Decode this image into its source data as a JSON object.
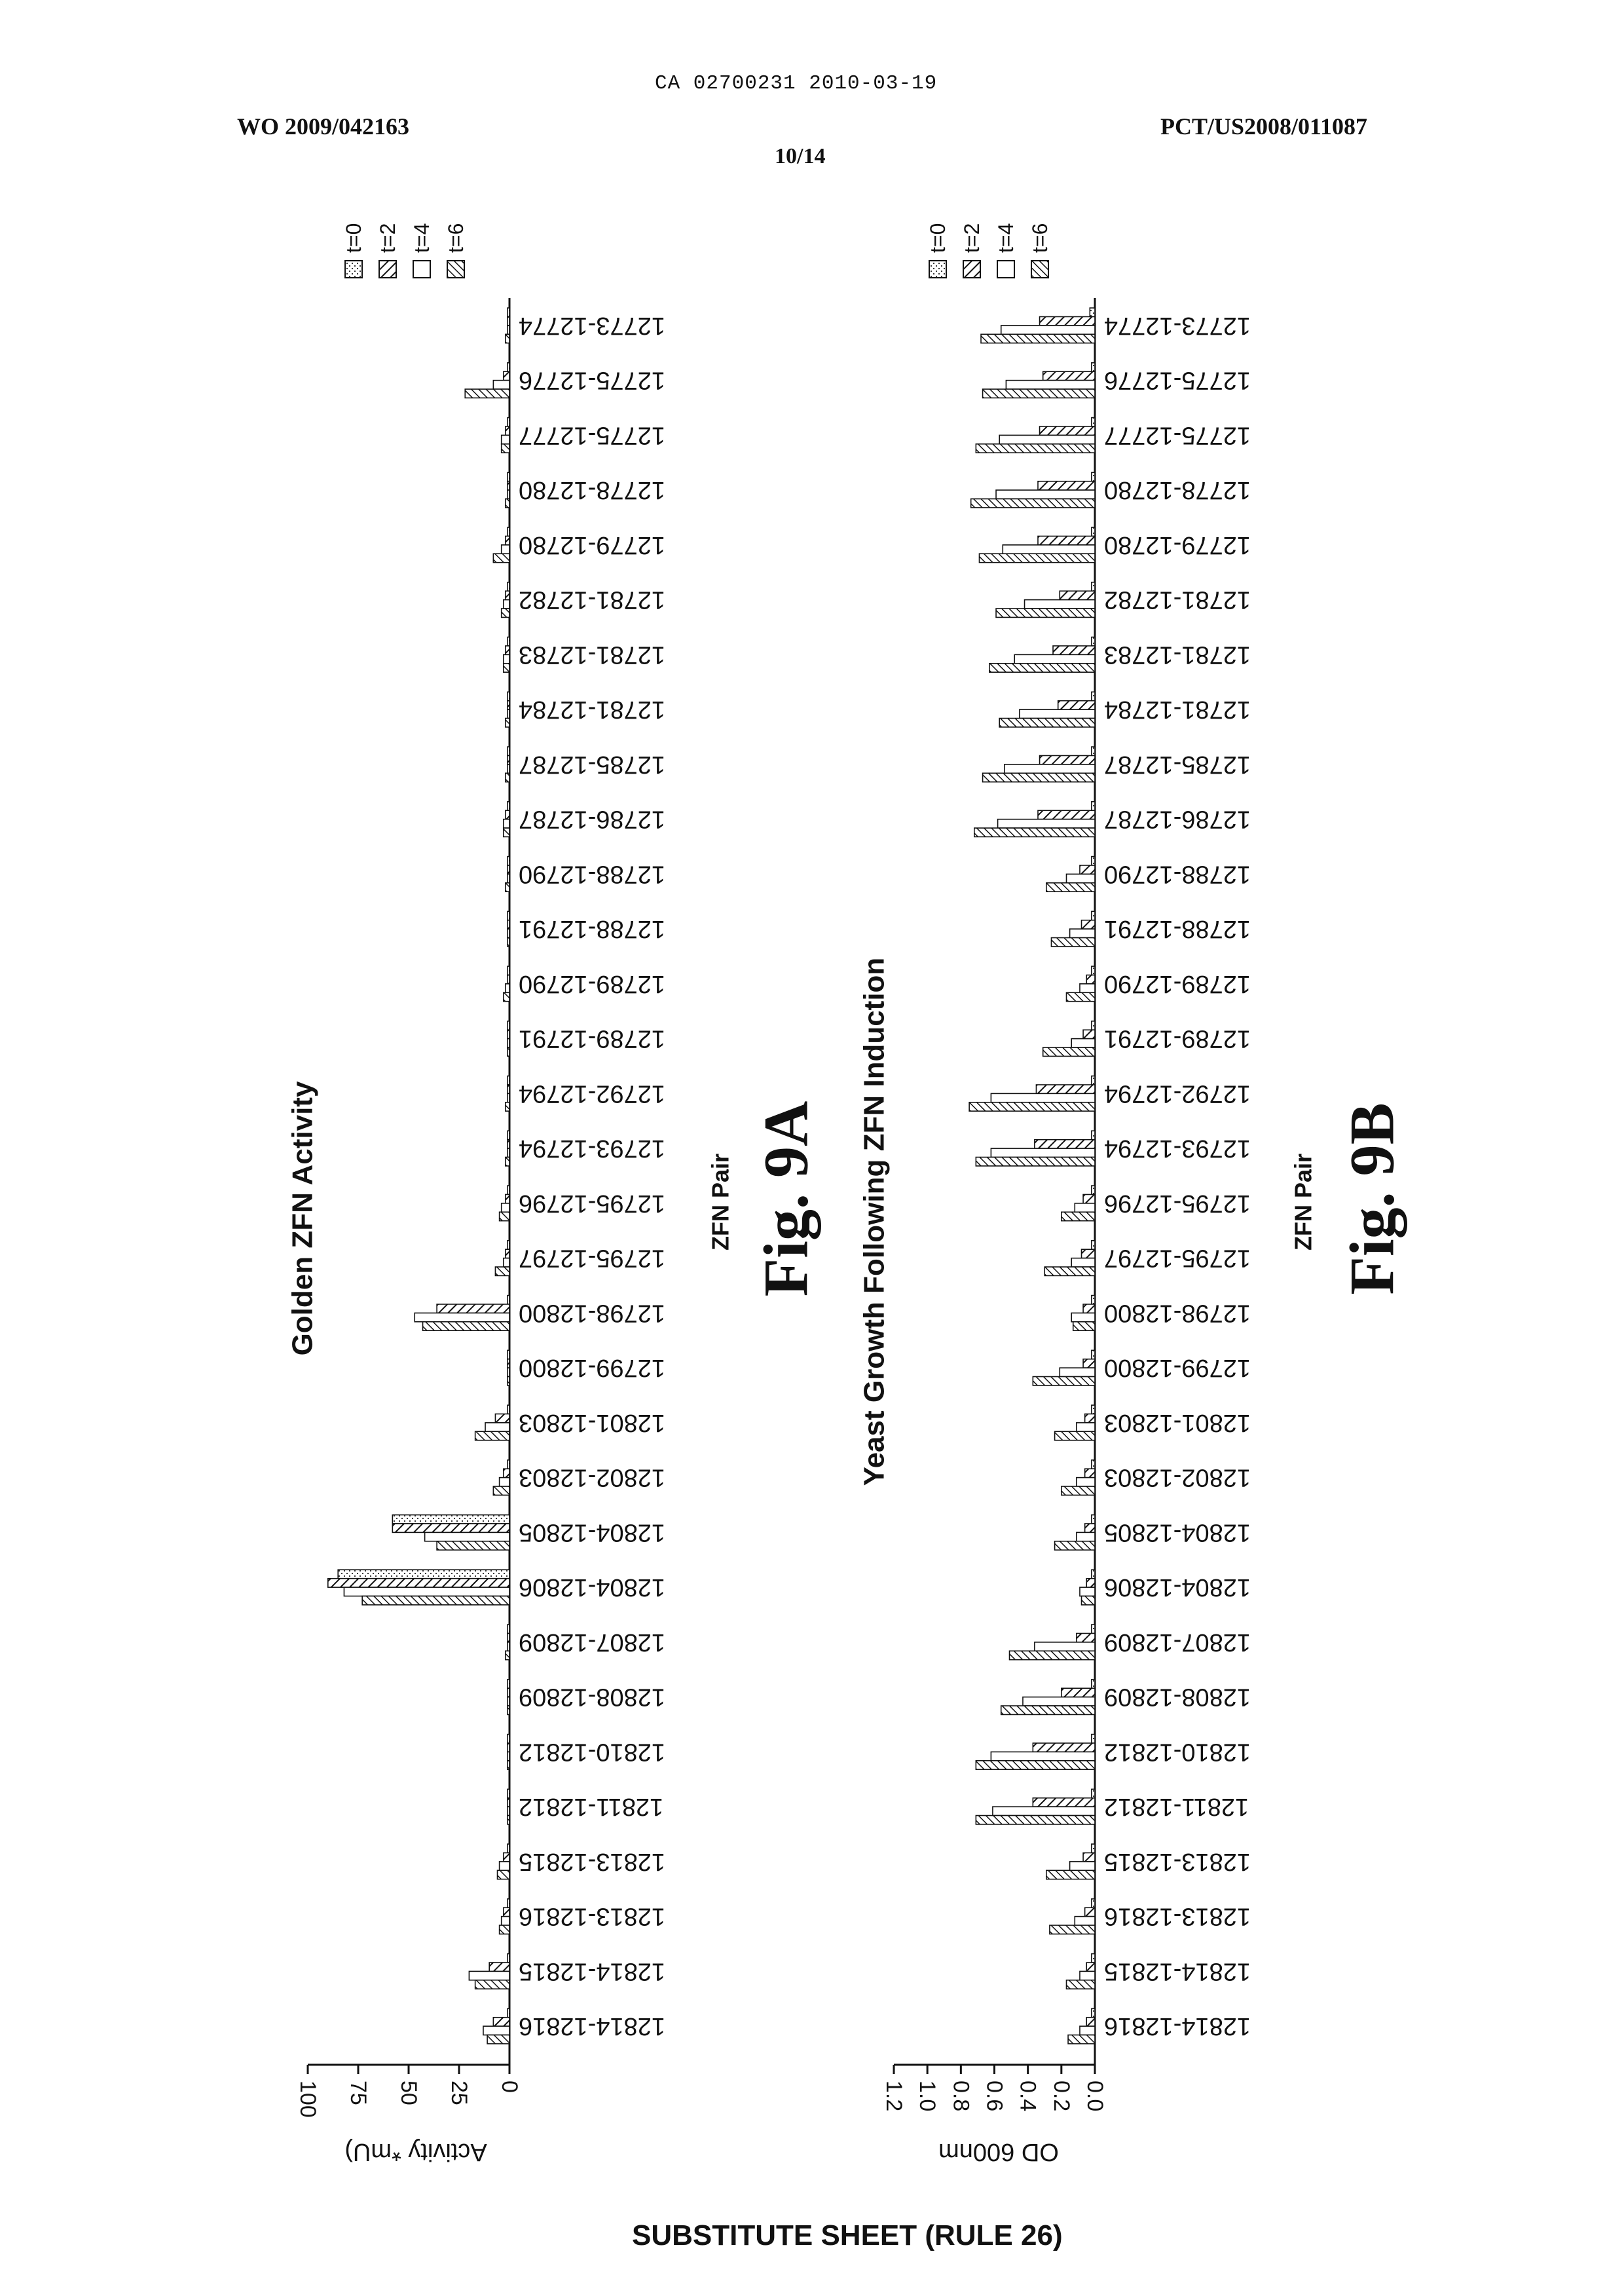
{
  "header": {
    "ca_number": "CA 02700231 2010-03-19",
    "wo_number": "WO 2009/042163",
    "pct_number": "PCT/US2008/011087",
    "page": "10/14"
  },
  "footer": "SUBSTITUTE SHEET (RULE 26)",
  "colors": {
    "ink": "#111111",
    "paper": "#ffffff"
  },
  "chart_data": [
    {
      "type": "bar",
      "title": "Golden ZFN Activity",
      "xlabel": "ZFN Pair",
      "ylabel": "Activity *mU)",
      "figure_label": "Fig. 9A",
      "ylim": [
        0,
        100
      ],
      "yticks": [
        "0",
        "25",
        "50",
        "75",
        "100"
      ],
      "legend": [
        "t=0",
        "t=2",
        "t=4",
        "t=6"
      ],
      "legend_position": "top",
      "grid": false,
      "orientation": "rotated page (bars grow to the left)",
      "categories": [
        "12773-12774",
        "12775-12776",
        "12775-12777",
        "12778-12780",
        "12779-12780",
        "12781-12782",
        "12781-12783",
        "12781-12784",
        "12785-12787",
        "12786-12787",
        "12788-12790",
        "12788-12791",
        "12789-12790",
        "12789-12791",
        "12792-12794",
        "12793-12794",
        "12795-12796",
        "12795-12797",
        "12798-12800",
        "12799-12800",
        "12801-12803",
        "12802-12803",
        "12804-12805",
        "12804-12806",
        "12807-12809",
        "12808-12809",
        "12810-12812",
        "12811-12812",
        "12813-12815",
        "12813-12816",
        "12814-12815",
        "12814-12816"
      ],
      "series": [
        {
          "name": "t=0",
          "values": [
            1,
            1,
            1,
            1,
            1,
            1,
            1,
            1,
            1,
            1,
            1,
            1,
            1,
            1,
            1,
            1,
            1,
            1,
            1,
            1,
            1,
            1,
            58,
            85,
            1,
            1,
            1,
            1,
            1,
            1,
            1,
            1
          ]
        },
        {
          "name": "t=2",
          "values": [
            1,
            3,
            2,
            1,
            2,
            2,
            2,
            1,
            1,
            2,
            1,
            1,
            1,
            1,
            1,
            1,
            2,
            2,
            36,
            1,
            7,
            3,
            58,
            90,
            1,
            1,
            1,
            1,
            3,
            3,
            10,
            8
          ]
        },
        {
          "name": "t=4",
          "values": [
            1,
            8,
            4,
            1,
            4,
            3,
            3,
            1,
            1,
            3,
            1,
            1,
            2,
            1,
            1,
            1,
            4,
            3,
            47,
            1,
            12,
            5,
            42,
            82,
            1,
            1,
            1,
            1,
            5,
            4,
            20,
            13
          ]
        },
        {
          "name": "t=6",
          "values": [
            2,
            22,
            4,
            2,
            8,
            4,
            3,
            2,
            2,
            3,
            2,
            1,
            3,
            1,
            2,
            2,
            5,
            7,
            43,
            1,
            17,
            8,
            36,
            73,
            2,
            1,
            1,
            1,
            6,
            5,
            17,
            11
          ]
        }
      ]
    },
    {
      "type": "bar",
      "title": "Yeast Growth Following ZFN Induction",
      "xlabel": "ZFN Pair",
      "ylabel": "OD 600nm",
      "figure_label": "Fig. 9B",
      "ylim": [
        0,
        1.2
      ],
      "yticks": [
        "0.0",
        "0.2",
        "0.4",
        "0.6",
        "0.8",
        "1.0",
        "1.2"
      ],
      "legend": [
        "t=0",
        "t=2",
        "t=4",
        "t=6"
      ],
      "legend_position": "top",
      "grid": false,
      "orientation": "rotated page (bars grow to the left)",
      "categories": [
        "12773-12774",
        "12775-12776",
        "12775-12777",
        "12778-12780",
        "12779-12780",
        "12781-12782",
        "12781-12783",
        "12781-12784",
        "12785-12787",
        "12786-12787",
        "12788-12790",
        "12788-12791",
        "12789-12790",
        "12789-12791",
        "12792-12794",
        "12793-12794",
        "12795-12796",
        "12795-12797",
        "12798-12800",
        "12799-12800",
        "12801-12803",
        "12802-12803",
        "12804-12805",
        "12804-12806",
        "12807-12809",
        "12808-12809",
        "12810-12812",
        "12811-12812",
        "12813-12815",
        "12813-12816",
        "12814-12815",
        "12814-12816"
      ],
      "series": [
        {
          "name": "t=0",
          "values": [
            0.03,
            0.02,
            0.02,
            0.02,
            0.02,
            0.02,
            0.02,
            0.02,
            0.02,
            0.02,
            0.02,
            0.02,
            0.02,
            0.02,
            0.02,
            0.02,
            0.02,
            0.02,
            0.02,
            0.02,
            0.02,
            0.02,
            0.02,
            0.02,
            0.02,
            0.02,
            0.02,
            0.02,
            0.02,
            0.02,
            0.02,
            0.02
          ]
        },
        {
          "name": "t=2",
          "values": [
            0.33,
            0.31,
            0.33,
            0.34,
            0.34,
            0.21,
            0.25,
            0.22,
            0.33,
            0.34,
            0.09,
            0.08,
            0.05,
            0.07,
            0.35,
            0.36,
            0.07,
            0.08,
            0.07,
            0.07,
            0.06,
            0.06,
            0.06,
            0.05,
            0.11,
            0.2,
            0.37,
            0.37,
            0.07,
            0.06,
            0.05,
            0.05
          ]
        },
        {
          "name": "t=4",
          "values": [
            0.56,
            0.53,
            0.57,
            0.59,
            0.55,
            0.42,
            0.48,
            0.45,
            0.54,
            0.58,
            0.17,
            0.15,
            0.09,
            0.14,
            0.62,
            0.62,
            0.12,
            0.14,
            0.14,
            0.21,
            0.11,
            0.11,
            0.11,
            0.09,
            0.36,
            0.43,
            0.62,
            0.61,
            0.15,
            0.12,
            0.09,
            0.09
          ]
        },
        {
          "name": "t=6",
          "values": [
            0.68,
            0.67,
            0.71,
            0.74,
            0.69,
            0.59,
            0.63,
            0.57,
            0.67,
            0.72,
            0.29,
            0.26,
            0.17,
            0.31,
            0.75,
            0.71,
            0.2,
            0.3,
            0.13,
            0.37,
            0.24,
            0.2,
            0.24,
            0.08,
            0.51,
            0.56,
            0.71,
            0.71,
            0.29,
            0.27,
            0.17,
            0.16
          ]
        }
      ]
    }
  ]
}
